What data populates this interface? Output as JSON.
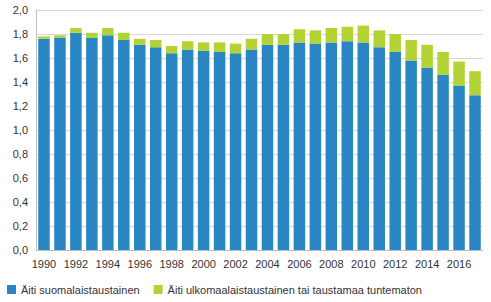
{
  "chart_data": {
    "type": "bar",
    "stacked": true,
    "categories": [
      "1990",
      null,
      "1992",
      null,
      "1994",
      null,
      "1996",
      null,
      "1998",
      null,
      "2000",
      null,
      "2002",
      null,
      "2004",
      null,
      "2006",
      null,
      "2008",
      null,
      "2010",
      null,
      "2012",
      null,
      "2014",
      null,
      "2016",
      null
    ],
    "series": [
      {
        "name": "Äiti suomalaistaustainen",
        "color": "#2a86c3",
        "values": [
          1.76,
          1.77,
          1.81,
          1.77,
          1.79,
          1.75,
          1.71,
          1.69,
          1.64,
          1.67,
          1.66,
          1.65,
          1.64,
          1.67,
          1.71,
          1.71,
          1.73,
          1.72,
          1.73,
          1.74,
          1.73,
          1.69,
          1.65,
          1.58,
          1.52,
          1.46,
          1.37,
          1.29
        ]
      },
      {
        "name": "Äiti ulkomaalaistaustainen tai taustamaa tuntematon",
        "color": "#b3d334",
        "values": [
          0.02,
          0.02,
          0.04,
          0.04,
          0.06,
          0.06,
          0.05,
          0.06,
          0.06,
          0.07,
          0.07,
          0.08,
          0.08,
          0.09,
          0.09,
          0.09,
          0.11,
          0.11,
          0.12,
          0.12,
          0.14,
          0.14,
          0.15,
          0.17,
          0.19,
          0.19,
          0.2,
          0.2
        ]
      }
    ],
    "ylim": [
      0,
      2
    ],
    "yticks": [
      {
        "value": 0,
        "label": "0,0"
      },
      {
        "value": 0.2,
        "label": "0,2"
      },
      {
        "value": 0.4,
        "label": "0,4"
      },
      {
        "value": 0.6,
        "label": "0,6"
      },
      {
        "value": 0.8,
        "label": "0,8"
      },
      {
        "value": 1,
        "label": "1,0"
      },
      {
        "value": 1.2,
        "label": "1,2"
      },
      {
        "value": 1.4,
        "label": "1,4"
      },
      {
        "value": 1.6,
        "label": "1,6"
      },
      {
        "value": 1.8,
        "label": "1,8"
      },
      {
        "value": 2,
        "label": "2,0"
      }
    ],
    "grid": true,
    "legend": "bottom"
  }
}
